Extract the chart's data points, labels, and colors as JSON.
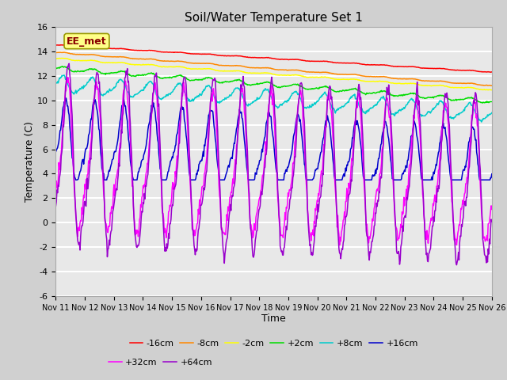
{
  "title": "Soil/Water Temperature Set 1",
  "xlabel": "Time",
  "ylabel": "Temperature (C)",
  "ylim": [
    -6,
    16
  ],
  "xlim": [
    0,
    15
  ],
  "annotation": "EE_met",
  "xtick_labels": [
    "Nov 11",
    "Nov 12",
    "Nov 13",
    "Nov 14",
    "Nov 15",
    "Nov 16",
    "Nov 17",
    "Nov 18",
    "Nov 19",
    "Nov 20",
    "Nov 21",
    "Nov 22",
    "Nov 23",
    "Nov 24",
    "Nov 25",
    "Nov 26"
  ],
  "ytick_vals": [
    -6,
    -4,
    -2,
    0,
    2,
    4,
    6,
    8,
    10,
    12,
    14,
    16
  ],
  "series_labels": [
    "-16cm",
    "-8cm",
    "-2cm",
    "+2cm",
    "+8cm",
    "+16cm",
    "+32cm",
    "+64cm"
  ],
  "series_colors": [
    "#ff0000",
    "#ff8800",
    "#ffff00",
    "#00dd00",
    "#00cccc",
    "#0000cc",
    "#ff00ff",
    "#9900cc"
  ],
  "fig_bg": "#d0d0d0",
  "ax_bg": "#e8e8e8",
  "grid_color": "#ffffff",
  "title_fontsize": 11,
  "axis_fontsize": 9,
  "tick_fontsize": 8,
  "xtick_fontsize": 7,
  "annotation_text": "EE_met",
  "annotation_color": "#880000",
  "annotation_bg": "#ffff88",
  "annotation_edge": "#999900"
}
